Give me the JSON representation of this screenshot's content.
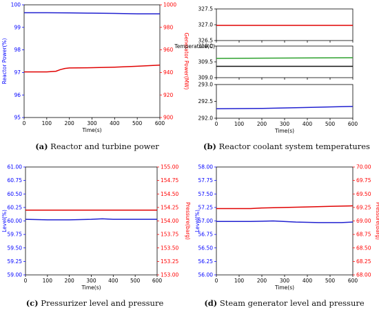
{
  "chart_data": [
    {
      "type": "line",
      "title": "",
      "xlabel": "Time(s)",
      "xlim": [
        0,
        600
      ],
      "xticks": [
        0,
        100,
        200,
        300,
        400,
        500,
        600
      ],
      "ylabel": "Reactor Power(%)",
      "ylim": [
        95,
        100
      ],
      "yticks": [
        95,
        96,
        97,
        98,
        99,
        100
      ],
      "ylabel_right": "Generator Power(MW)",
      "ylim_right": [
        900,
        1000
      ],
      "yticks_right": [
        900,
        920,
        940,
        960,
        980,
        1000
      ],
      "left_axis_color": "#0000ff",
      "right_axis_color": "#ff0000",
      "series": [
        {
          "axis": "left",
          "color": "#1f1fd0",
          "x": [
            0,
            100,
            200,
            300,
            400,
            500,
            600
          ],
          "y": [
            99.65,
            99.65,
            99.64,
            99.63,
            99.62,
            99.6,
            99.6
          ]
        },
        {
          "axis": "right",
          "color": "#e00000",
          "x": [
            0,
            100,
            140,
            160,
            180,
            200,
            300,
            400,
            500,
            600
          ],
          "y": [
            940.5,
            940.5,
            941,
            942.5,
            943.5,
            944,
            944.2,
            944.7,
            945.5,
            946.5
          ]
        }
      ],
      "caption_label": "(a)",
      "caption_text": " Reactor and turbine power"
    },
    {
      "type": "line",
      "title": "",
      "xlabel": "Time(s)",
      "xlim": [
        0,
        600
      ],
      "xticks": [
        0,
        100,
        200,
        300,
        400,
        500,
        600
      ],
      "ylabel": "Temperature(C)",
      "panels": [
        {
          "ylim": [
            326.5,
            327.5
          ],
          "yticks": [
            326.5,
            327.0,
            327.5
          ],
          "series": [
            {
              "color": "#e00000",
              "x": [
                0,
                600
              ],
              "y": [
                326.98,
                326.98
              ]
            }
          ]
        },
        {
          "ylim": [
            309.0,
            310.0
          ],
          "yticks": [
            309.0,
            309.5,
            310.0
          ],
          "series": [
            {
              "color": "#2ca02c",
              "x": [
                0,
                600
              ],
              "y": [
                309.61,
                309.63
              ]
            },
            {
              "color": "#111111",
              "x": [
                0,
                600
              ],
              "y": [
                309.36,
                309.36
              ]
            }
          ]
        },
        {
          "ylim": [
            292.0,
            293.0
          ],
          "yticks": [
            292.0,
            292.5,
            293.0
          ],
          "series": [
            {
              "color": "#1f1fd0",
              "x": [
                0,
                200,
                400,
                600
              ],
              "y": [
                292.28,
                292.29,
                292.32,
                292.35
              ]
            }
          ]
        }
      ],
      "caption_label": "(b)",
      "caption_text": " Reactor coolant system temperatures"
    },
    {
      "type": "line",
      "title": "",
      "xlabel": "Time(s)",
      "xlim": [
        0,
        600
      ],
      "xticks": [
        0,
        100,
        200,
        300,
        400,
        500,
        600
      ],
      "ylabel": "Level(%)",
      "ylim": [
        59,
        61
      ],
      "yticks": [
        59.0,
        59.25,
        59.5,
        59.75,
        60.0,
        60.25,
        60.5,
        60.75,
        61.0
      ],
      "ylabel_right": "Pressure(barg)",
      "ylim_right": [
        153,
        155
      ],
      "yticks_right": [
        153.0,
        153.25,
        153.5,
        153.75,
        154.0,
        154.25,
        154.5,
        154.75,
        155.0
      ],
      "left_axis_color": "#0000ff",
      "right_axis_color": "#ff0000",
      "series": [
        {
          "axis": "left",
          "color": "#1f1fd0",
          "x": [
            0,
            100,
            200,
            300,
            350,
            400,
            500,
            600
          ],
          "y": [
            60.03,
            60.02,
            60.02,
            60.03,
            60.04,
            60.03,
            60.03,
            60.03
          ]
        },
        {
          "axis": "right",
          "color": "#e00000",
          "x": [
            0,
            100,
            200,
            300,
            400,
            500,
            600
          ],
          "y": [
            154.2,
            154.2,
            154.2,
            154.2,
            154.2,
            154.2,
            154.2
          ]
        }
      ],
      "caption_label": "(c)",
      "caption_text": " Pressurizer level and pressure"
    },
    {
      "type": "line",
      "title": "",
      "xlabel": "Time(s)",
      "xlim": [
        0,
        600
      ],
      "xticks": [
        0,
        100,
        200,
        300,
        400,
        500,
        600
      ],
      "ylabel": "Level(%)",
      "ylim": [
        56,
        58
      ],
      "yticks": [
        56.0,
        56.25,
        56.5,
        56.75,
        57.0,
        57.25,
        57.5,
        57.75,
        58.0
      ],
      "ylabel_right": "Pressure(barg)",
      "ylim_right": [
        68,
        70
      ],
      "yticks_right": [
        68.0,
        68.25,
        68.5,
        68.75,
        69.0,
        69.25,
        69.5,
        69.75,
        70.0
      ],
      "left_axis_color": "#0000ff",
      "right_axis_color": "#ff0000",
      "series": [
        {
          "axis": "left",
          "color": "#1f1fd0",
          "x": [
            0,
            150,
            250,
            350,
            450,
            550,
            600
          ],
          "y": [
            56.99,
            56.99,
            57.0,
            56.98,
            56.97,
            56.97,
            56.98
          ]
        },
        {
          "axis": "right",
          "color": "#e00000",
          "x": [
            0,
            150,
            200,
            300,
            400,
            500,
            600
          ],
          "y": [
            69.23,
            69.23,
            69.24,
            69.25,
            69.26,
            69.27,
            69.28
          ]
        }
      ],
      "caption_label": "(d)",
      "caption_text": " Steam generator level and pressure"
    }
  ]
}
